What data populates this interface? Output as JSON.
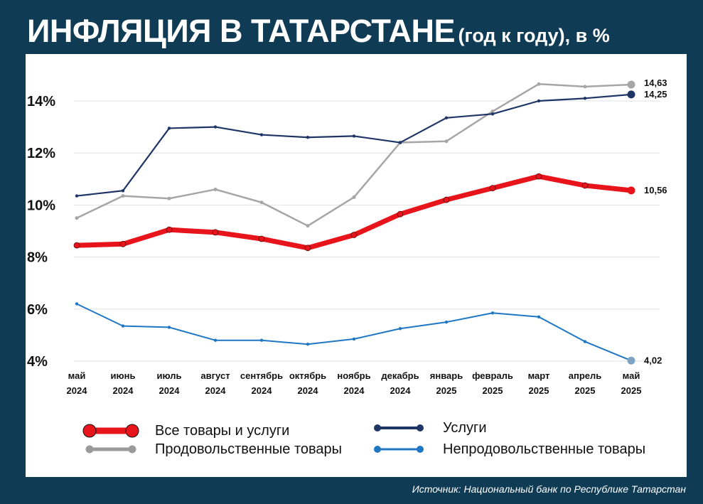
{
  "header": {
    "title_main": "ИНФЛЯЦИЯ В ТАТАРСТАНЕ",
    "title_sub": "(год к году), в %"
  },
  "footer": {
    "source": "Источник: Национальный банк по Республике Татарстан"
  },
  "colors": {
    "background": "#0f3b55",
    "all": "#e8141b",
    "services": "#1e3566",
    "food": "#a6a6a6",
    "nonfood": "#1f77c4",
    "grid": "#e2e2e2"
  },
  "chart_data": {
    "type": "line",
    "title": "ИНФЛЯЦИЯ В ТАТАРСТАНЕ (год к году), в %",
    "xlabel": "",
    "ylabel": "",
    "ylim": [
      4,
      15.5
    ],
    "yticks": [
      4,
      6,
      8,
      10,
      12,
      14
    ],
    "ytick_labels": [
      "4%",
      "6%",
      "8%",
      "10%",
      "12%",
      "14%"
    ],
    "grid": true,
    "categories": [
      {
        "month": "май",
        "year": "2024"
      },
      {
        "month": "июнь",
        "year": "2024"
      },
      {
        "month": "июль",
        "year": "2024"
      },
      {
        "month": "август",
        "year": "2024"
      },
      {
        "month": "сентябрь",
        "year": "2024"
      },
      {
        "month": "октябрь",
        "year": "2024"
      },
      {
        "month": "ноябрь",
        "year": "2024"
      },
      {
        "month": "декабрь",
        "year": "2024"
      },
      {
        "month": "январь",
        "year": "2025"
      },
      {
        "month": "февраль",
        "year": "2025"
      },
      {
        "month": "март",
        "year": "2025"
      },
      {
        "month": "апрель",
        "year": "2025"
      },
      {
        "month": "май",
        "year": "2025"
      }
    ],
    "series": [
      {
        "key": "food",
        "name": "Продовольственные товары",
        "values": [
          9.5,
          10.35,
          10.25,
          10.6,
          10.1,
          9.2,
          10.3,
          12.4,
          12.45,
          13.6,
          14.65,
          14.55,
          14.63
        ],
        "end_label": "14,63"
      },
      {
        "key": "services",
        "name": "Услуги",
        "values": [
          10.35,
          10.55,
          12.95,
          13.0,
          12.7,
          12.6,
          12.65,
          12.4,
          13.35,
          13.5,
          14.0,
          14.1,
          14.25
        ],
        "end_label": "14,25"
      },
      {
        "key": "all",
        "name": "Все товары и услуги",
        "values": [
          8.45,
          8.5,
          9.05,
          8.95,
          8.7,
          8.35,
          8.85,
          9.65,
          10.2,
          10.65,
          11.1,
          10.75,
          10.56
        ],
        "end_label": "10,56"
      },
      {
        "key": "nonfood",
        "name": "Непродовольственные товары",
        "values": [
          6.2,
          5.35,
          5.3,
          4.8,
          4.8,
          4.65,
          4.85,
          5.25,
          5.5,
          5.85,
          5.7,
          4.75,
          4.02
        ],
        "end_label": "4,02"
      }
    ],
    "legend": [
      {
        "key": "all",
        "label": "Все товары и услуги"
      },
      {
        "key": "services",
        "label": "Услуги"
      },
      {
        "key": "food",
        "label": "Продовольственные товары"
      },
      {
        "key": "nonfood",
        "label": "Непродовольственные товары"
      }
    ],
    "legend_position": "bottom"
  }
}
